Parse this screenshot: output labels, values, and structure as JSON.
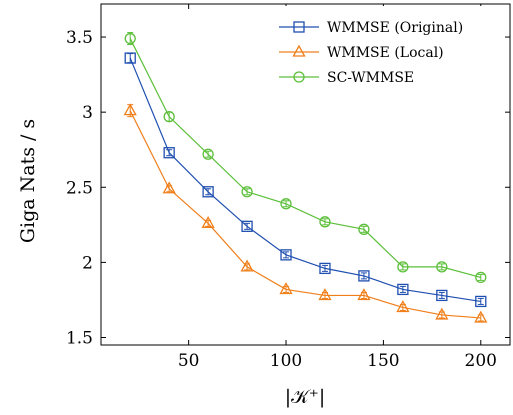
{
  "chart_data": {
    "type": "line",
    "x": [
      20,
      40,
      60,
      80,
      100,
      120,
      140,
      160,
      180,
      200
    ],
    "xlabel": "|𝒦⁺|",
    "ylabel": "Giga Nats / s",
    "xlim": [
      5,
      215
    ],
    "ylim": [
      1.45,
      3.72
    ],
    "x_ticks": [
      50,
      100,
      150,
      200
    ],
    "y_ticks": [
      1.5,
      2,
      2.5,
      3,
      3.5
    ],
    "x_tick_labels": [
      "50",
      "100",
      "150",
      "200"
    ],
    "y_tick_labels": [
      "1.5",
      "2",
      "2.5",
      "3",
      "3.5"
    ],
    "grid": false,
    "legend_position": "top-right",
    "series": [
      {
        "name": "WMMSE (Original)",
        "color": "#1f4fb0",
        "marker": "square",
        "values": [
          3.36,
          2.73,
          2.47,
          2.24,
          2.05,
          1.96,
          1.91,
          1.82,
          1.78,
          1.74
        ],
        "errors": [
          0.03,
          0.02,
          0.02,
          0.02,
          0.02,
          0.02,
          0.02,
          0.02,
          0.02,
          0.02
        ]
      },
      {
        "name": "WMMSE (Local)",
        "color": "#f07f1a",
        "marker": "triangle",
        "values": [
          3.01,
          2.49,
          2.26,
          1.97,
          1.82,
          1.78,
          1.78,
          1.7,
          1.65,
          1.63
        ],
        "errors": [
          0.04,
          0.02,
          0.02,
          0.02,
          0.02,
          0.02,
          0.02,
          0.02,
          0.02,
          0.02
        ]
      },
      {
        "name": "SC-WMMSE",
        "color": "#5cbf3a",
        "marker": "circle",
        "values": [
          3.49,
          2.97,
          2.72,
          2.47,
          2.39,
          2.27,
          2.22,
          1.97,
          1.97,
          1.9
        ],
        "errors": [
          0.04,
          0.03,
          0.02,
          0.02,
          0.02,
          0.02,
          0.02,
          0.02,
          0.02,
          0.02
        ]
      }
    ]
  }
}
